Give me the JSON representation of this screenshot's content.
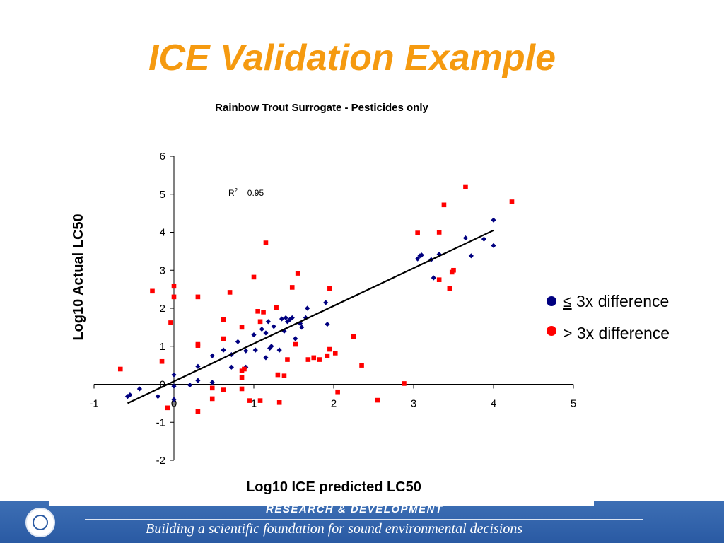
{
  "slide": {
    "title": "ICE Validation Example"
  },
  "legend": {
    "items": [
      {
        "symbol": "≤",
        "text": " 3x difference",
        "color": "#000080"
      },
      {
        "symbol": ">",
        "text": " 3x difference",
        "color": "#ff0000"
      }
    ]
  },
  "footer": {
    "heading": "RESEARCH &  DEVELOPMENT",
    "tagline": "Building a scientific foundation for sound environmental decisions"
  },
  "colors": {
    "title": "#f59a10",
    "within_3x": "#000080",
    "over_3x": "#ff0000",
    "footer": "#2a5aa3"
  },
  "chart_data": {
    "type": "scatter",
    "title": "Rainbow Trout Surrogate - Pesticides only",
    "xlabel": "Log10 ICE predicted LC50",
    "ylabel": "Log10 Actual LC50",
    "xlim": [
      -1,
      5
    ],
    "ylim": [
      -2,
      6
    ],
    "xticks": [
      -1,
      0,
      1,
      2,
      3,
      4,
      5
    ],
    "yticks": [
      -2,
      -1,
      0,
      1,
      2,
      3,
      4,
      5,
      6
    ],
    "annotation": {
      "text": "R",
      "sup": "2",
      "rest": " = 0.95"
    },
    "regression": {
      "x": [
        -0.58,
        4.0
      ],
      "y": [
        -0.5,
        4.05
      ]
    },
    "series": [
      {
        "name": "≤ 3x difference",
        "marker": "diamond",
        "color": "#000080",
        "points": [
          [
            -0.58,
            -0.32
          ],
          [
            -0.55,
            -0.28
          ],
          [
            -0.43,
            -0.12
          ],
          [
            -0.2,
            -0.32
          ],
          [
            0.0,
            0.25
          ],
          [
            0.0,
            -0.05
          ],
          [
            0.0,
            -0.4
          ],
          [
            0.2,
            -0.02
          ],
          [
            0.3,
            0.1
          ],
          [
            0.3,
            0.47
          ],
          [
            0.48,
            0.05
          ],
          [
            0.48,
            0.75
          ],
          [
            0.62,
            0.9
          ],
          [
            0.72,
            0.45
          ],
          [
            0.72,
            0.78
          ],
          [
            0.8,
            1.12
          ],
          [
            0.9,
            0.88
          ],
          [
            0.9,
            0.45
          ],
          [
            1.02,
            0.9
          ],
          [
            1.0,
            1.3
          ],
          [
            1.1,
            1.45
          ],
          [
            1.15,
            0.7
          ],
          [
            1.15,
            1.35
          ],
          [
            1.18,
            1.65
          ],
          [
            1.2,
            0.95
          ],
          [
            1.22,
            1.0
          ],
          [
            1.25,
            1.52
          ],
          [
            1.32,
            0.9
          ],
          [
            1.35,
            1.72
          ],
          [
            1.38,
            1.4
          ],
          [
            1.4,
            1.75
          ],
          [
            1.42,
            1.65
          ],
          [
            1.45,
            1.7
          ],
          [
            1.48,
            1.75
          ],
          [
            1.52,
            1.2
          ],
          [
            1.58,
            1.6
          ],
          [
            1.6,
            1.5
          ],
          [
            1.65,
            1.75
          ],
          [
            1.67,
            2.0
          ],
          [
            1.9,
            2.15
          ],
          [
            1.92,
            1.58
          ],
          [
            3.05,
            3.3
          ],
          [
            3.08,
            3.38
          ],
          [
            3.1,
            3.4
          ],
          [
            3.22,
            3.28
          ],
          [
            3.25,
            2.8
          ],
          [
            3.32,
            3.42
          ],
          [
            3.65,
            3.85
          ],
          [
            3.72,
            3.38
          ],
          [
            3.88,
            3.82
          ],
          [
            4.0,
            4.32
          ],
          [
            4.0,
            3.65
          ]
        ]
      },
      {
        "name": "> 3x difference",
        "marker": "square",
        "color": "#ff0000",
        "points": [
          [
            -0.67,
            0.4
          ],
          [
            -0.27,
            2.45
          ],
          [
            -0.15,
            0.6
          ],
          [
            -0.08,
            -0.62
          ],
          [
            -0.04,
            1.62
          ],
          [
            0.0,
            2.58
          ],
          [
            0.0,
            2.3
          ],
          [
            0.3,
            2.3
          ],
          [
            0.3,
            1.02
          ],
          [
            0.3,
            1.05
          ],
          [
            0.3,
            -0.72
          ],
          [
            0.48,
            -0.1
          ],
          [
            0.48,
            -0.38
          ],
          [
            0.62,
            1.7
          ],
          [
            0.62,
            1.2
          ],
          [
            0.62,
            -0.15
          ],
          [
            0.7,
            2.42
          ],
          [
            0.85,
            -0.12
          ],
          [
            0.85,
            1.5
          ],
          [
            0.85,
            0.18
          ],
          [
            0.85,
            0.35
          ],
          [
            0.88,
            0.4
          ],
          [
            0.95,
            -0.43
          ],
          [
            1.0,
            2.82
          ],
          [
            1.05,
            1.92
          ],
          [
            1.08,
            1.65
          ],
          [
            1.08,
            -0.43
          ],
          [
            1.12,
            1.9
          ],
          [
            1.15,
            3.72
          ],
          [
            1.28,
            2.02
          ],
          [
            1.3,
            0.25
          ],
          [
            1.32,
            -0.48
          ],
          [
            1.38,
            0.22
          ],
          [
            1.42,
            0.65
          ],
          [
            1.48,
            2.55
          ],
          [
            1.52,
            1.05
          ],
          [
            1.55,
            2.92
          ],
          [
            1.68,
            0.65
          ],
          [
            1.75,
            0.7
          ],
          [
            1.82,
            0.65
          ],
          [
            1.92,
            0.75
          ],
          [
            1.95,
            2.52
          ],
          [
            1.95,
            0.92
          ],
          [
            2.02,
            0.82
          ],
          [
            2.05,
            -0.2
          ],
          [
            2.25,
            1.25
          ],
          [
            2.35,
            0.5
          ],
          [
            2.55,
            -0.42
          ],
          [
            2.88,
            0.02
          ],
          [
            3.05,
            3.98
          ],
          [
            3.32,
            4.0
          ],
          [
            3.32,
            2.75
          ],
          [
            3.38,
            4.72
          ],
          [
            3.45,
            2.52
          ],
          [
            3.48,
            2.95
          ],
          [
            3.5,
            3.0
          ],
          [
            3.65,
            5.2
          ],
          [
            4.23,
            4.8
          ]
        ]
      }
    ]
  }
}
